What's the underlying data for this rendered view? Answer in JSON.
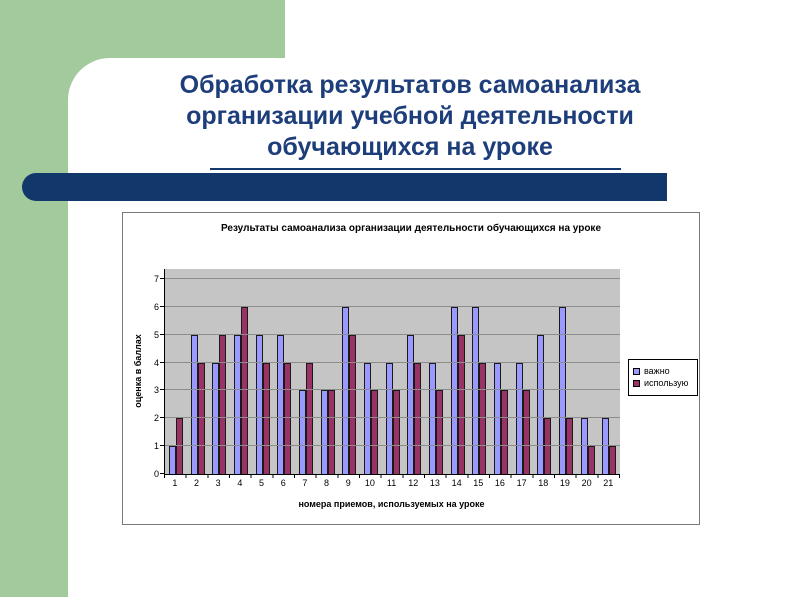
{
  "slide": {
    "title_lines": [
      "Обработка результатов самоанализа",
      "организации учебной деятельности",
      "обучающихся на уроке"
    ],
    "colors": {
      "accent_green": "#A2CA9C",
      "accent_navy": "#12386B",
      "title_text": "#1D3E7A"
    }
  },
  "chart_data": {
    "type": "bar",
    "title": "Результаты самоанализа организации деятельности обучающихся на уроке",
    "xlabel": "номера приемов, используемых на уроке",
    "ylabel": "оценка в баллах",
    "ylim": [
      0,
      7
    ],
    "yticks": [
      0,
      1,
      2,
      3,
      4,
      5,
      6,
      7
    ],
    "grid": true,
    "legend_position": "right",
    "plot_bg": "#C5C5C5",
    "gridline_color": "#8C8C8C",
    "categories": [
      "1",
      "2",
      "3",
      "4",
      "5",
      "6",
      "7",
      "8",
      "9",
      "10",
      "11",
      "12",
      "13",
      "14",
      "15",
      "16",
      "17",
      "18",
      "19",
      "20",
      "21"
    ],
    "series": [
      {
        "name": "важно",
        "color": "#9999FF",
        "values": [
          1,
          5,
          4,
          5,
          5,
          5,
          3,
          3,
          6,
          4,
          4,
          5,
          4,
          6,
          6,
          4,
          4,
          5,
          6,
          2,
          2
        ]
      },
      {
        "name": "использую",
        "color": "#993366",
        "values": [
          2,
          4,
          5,
          6,
          4,
          4,
          4,
          3,
          5,
          3,
          3,
          4,
          3,
          5,
          4,
          3,
          3,
          2,
          2,
          1,
          1
        ]
      }
    ]
  }
}
